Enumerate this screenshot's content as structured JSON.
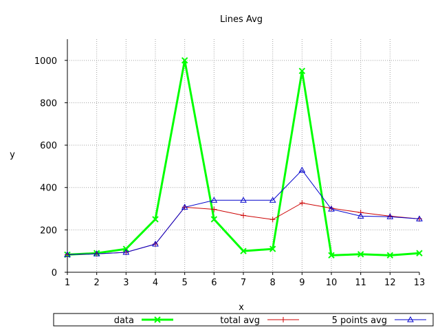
{
  "chart_data": {
    "type": "line",
    "title": "Lines Avg",
    "xlabel": "x",
    "ylabel": "y",
    "x": [
      1,
      2,
      3,
      4,
      5,
      6,
      7,
      8,
      9,
      10,
      11,
      12,
      13
    ],
    "xlim": [
      1,
      13
    ],
    "ylim": [
      0,
      1100
    ],
    "yticks": [
      0,
      200,
      400,
      600,
      800,
      1000
    ],
    "grid": true,
    "legend_position": "bottom",
    "series": [
      {
        "name": "data",
        "color": "#00ff00",
        "marker": "x",
        "values": [
          83,
          90,
          110,
          250,
          1000,
          250,
          100,
          110,
          950,
          80,
          85,
          80,
          90
        ]
      },
      {
        "name": "total avg",
        "color": "#cc0000",
        "marker": "plus",
        "values": [
          83,
          87,
          94,
          133,
          307,
          297,
          268,
          249,
          327,
          302,
          282,
          265,
          252
        ]
      },
      {
        "name": "5 points avg",
        "color": "#0000cc",
        "marker": "triangle",
        "values": [
          83,
          87,
          94,
          133,
          307,
          340,
          340,
          340,
          482,
          298,
          265,
          262,
          252
        ]
      }
    ]
  }
}
